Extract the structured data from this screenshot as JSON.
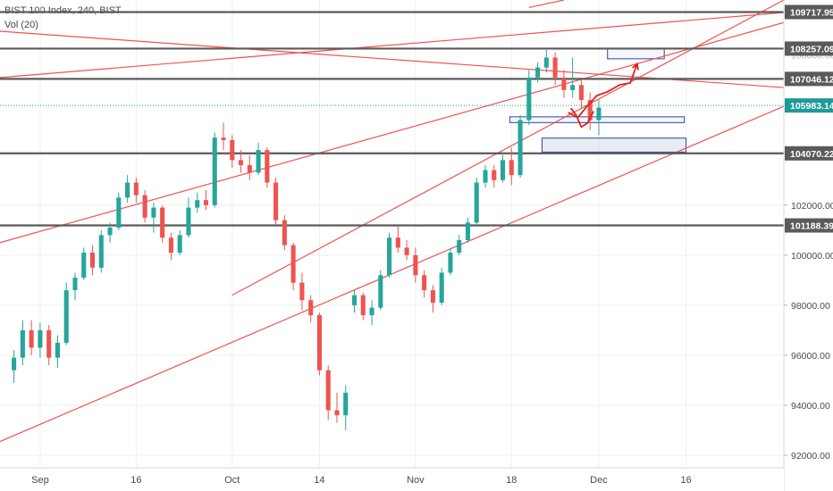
{
  "legend": {
    "symbol_line": "BIST 100 Index, 240, BIST",
    "volume_line": "Vol (20)"
  },
  "chart_data": {
    "type": "candlestick",
    "title": "BIST 100 Index, 240, BIST",
    "ylim": [
      91500,
      110200
    ],
    "y_ticks": [
      "92000.00",
      "94000.00",
      "96000.00",
      "98000.00",
      "100000.00",
      "102000.00"
    ],
    "x_ticks": [
      {
        "label": "Sep",
        "session": 3
      },
      {
        "label": "16",
        "session": 14
      },
      {
        "label": "Oct",
        "session": 25
      },
      {
        "label": "14",
        "session": 35
      },
      {
        "label": "Nov",
        "session": 46
      },
      {
        "label": "18",
        "session": 57
      },
      {
        "label": "Dec",
        "session": 67
      },
      {
        "label": "16",
        "session": 77
      }
    ],
    "x_range": [
      -1.6,
      88.2
    ],
    "price_levels": [
      {
        "label": "109717.95",
        "value": 109718,
        "color": "#5a5a5a",
        "style": "solid"
      },
      {
        "label": "108257.09",
        "value": 108257,
        "color": "#5a5a5a",
        "style": "solid"
      },
      {
        "label": "107046.12",
        "value": 107046,
        "color": "#5a5a5a",
        "style": "solid"
      },
      {
        "label": "105983.14",
        "value": 105983,
        "color": "#1e9a98",
        "style": "dotted"
      },
      {
        "label": "104070.22",
        "value": 104070,
        "color": "#5a5a5a",
        "style": "solid"
      },
      {
        "label": "101188.39",
        "value": 101188,
        "color": "#5a5a5a",
        "style": "solid"
      }
    ],
    "hidden_label": "108000.00",
    "trend_lines": [
      {
        "x1": -1.6,
        "y1": 107100,
        "x2": 88.2,
        "y2": 109700
      },
      {
        "x1": 25.0,
        "y1": 98400,
        "x2": 88.2,
        "y2": 110200
      },
      {
        "x1": -1.6,
        "y1": 100500,
        "x2": 88.2,
        "y2": 109300
      },
      {
        "x1": -1.6,
        "y1": 108950,
        "x2": 88.2,
        "y2": 106700
      },
      {
        "x1": -1.6,
        "y1": 92550,
        "x2": 88.2,
        "y2": 105950
      },
      {
        "x1": 59.0,
        "y1": 109900,
        "x2": 63.0,
        "y2": 110200
      }
    ],
    "zones": [
      {
        "x1": 68.0,
        "x2": 74.5,
        "y1": 107850,
        "y2": 108250,
        "style": "outline"
      },
      {
        "x1": 56.8,
        "x2": 76.8,
        "y1": 105300,
        "y2": 105530,
        "style": "outline"
      },
      {
        "x1": 60.5,
        "x2": 77.0,
        "y1": 104120,
        "y2": 104680,
        "style": "filled"
      }
    ],
    "projection_up": [
      [
        63.5,
        105700
      ],
      [
        64.6,
        105500
      ],
      [
        65.6,
        105930
      ],
      [
        66.8,
        106380
      ],
      [
        68.0,
        106530
      ],
      [
        69.4,
        106810
      ],
      [
        70.6,
        106880
      ],
      [
        71.4,
        107650
      ]
    ],
    "projection_down": [
      [
        63.8,
        105880
      ],
      [
        64.4,
        105600
      ],
      [
        65.0,
        105120
      ],
      [
        65.7,
        105280
      ],
      [
        66.4,
        105750
      ]
    ],
    "candles": [
      {
        "o": 95400,
        "h": 96200,
        "l": 94900,
        "c": 95900
      },
      {
        "o": 95900,
        "h": 97400,
        "l": 95600,
        "c": 97000
      },
      {
        "o": 97000,
        "h": 97400,
        "l": 96000,
        "c": 96300
      },
      {
        "o": 96300,
        "h": 97300,
        "l": 95900,
        "c": 97000
      },
      {
        "o": 97000,
        "h": 97200,
        "l": 95600,
        "c": 95900
      },
      {
        "o": 95900,
        "h": 96800,
        "l": 95500,
        "c": 96500
      },
      {
        "o": 96500,
        "h": 98900,
        "l": 96400,
        "c": 98600
      },
      {
        "o": 98600,
        "h": 99300,
        "l": 98200,
        "c": 99100
      },
      {
        "o": 99100,
        "h": 100300,
        "l": 99000,
        "c": 100100
      },
      {
        "o": 100100,
        "h": 100400,
        "l": 99200,
        "c": 99500
      },
      {
        "o": 99500,
        "h": 101000,
        "l": 99300,
        "c": 100800
      },
      {
        "o": 100800,
        "h": 101300,
        "l": 100500,
        "c": 101100
      },
      {
        "o": 101100,
        "h": 102500,
        "l": 101000,
        "c": 102300
      },
      {
        "o": 102300,
        "h": 103200,
        "l": 102100,
        "c": 102900
      },
      {
        "o": 102900,
        "h": 103100,
        "l": 102100,
        "c": 102400
      },
      {
        "o": 102400,
        "h": 102600,
        "l": 101300,
        "c": 101500
      },
      {
        "o": 101500,
        "h": 102100,
        "l": 100900,
        "c": 101900
      },
      {
        "o": 101900,
        "h": 102000,
        "l": 100500,
        "c": 100700
      },
      {
        "o": 100700,
        "h": 100900,
        "l": 99800,
        "c": 100100
      },
      {
        "o": 100100,
        "h": 101000,
        "l": 100000,
        "c": 100800
      },
      {
        "o": 100800,
        "h": 102300,
        "l": 100700,
        "c": 101900
      },
      {
        "o": 101900,
        "h": 102500,
        "l": 101700,
        "c": 102200
      },
      {
        "o": 102200,
        "h": 102600,
        "l": 101800,
        "c": 102000
      },
      {
        "o": 102000,
        "h": 104900,
        "l": 101900,
        "c": 104700
      },
      {
        "o": 104700,
        "h": 105300,
        "l": 104200,
        "c": 104600
      },
      {
        "o": 104600,
        "h": 104800,
        "l": 103500,
        "c": 103800
      },
      {
        "o": 103800,
        "h": 104200,
        "l": 103300,
        "c": 103600
      },
      {
        "o": 103600,
        "h": 104000,
        "l": 103000,
        "c": 103300
      },
      {
        "o": 103300,
        "h": 104500,
        "l": 103200,
        "c": 104200
      },
      {
        "o": 104200,
        "h": 104300,
        "l": 102700,
        "c": 102900
      },
      {
        "o": 102900,
        "h": 103100,
        "l": 101200,
        "c": 101400
      },
      {
        "o": 101400,
        "h": 101600,
        "l": 100200,
        "c": 100400
      },
      {
        "o": 100400,
        "h": 100500,
        "l": 98600,
        "c": 98900
      },
      {
        "o": 98900,
        "h": 99300,
        "l": 97800,
        "c": 98200
      },
      {
        "o": 98200,
        "h": 98400,
        "l": 97300,
        "c": 97600
      },
      {
        "o": 97600,
        "h": 97700,
        "l": 95200,
        "c": 95400
      },
      {
        "o": 95400,
        "h": 95600,
        "l": 93400,
        "c": 93800
      },
      {
        "o": 93800,
        "h": 94500,
        "l": 93300,
        "c": 93600
      },
      {
        "o": 93600,
        "h": 94800,
        "l": 93000,
        "c": 94500
      },
      {
        "o": 98000,
        "h": 98600,
        "l": 97700,
        "c": 98400
      },
      {
        "o": 98400,
        "h": 98500,
        "l": 97400,
        "c": 97600
      },
      {
        "o": 97600,
        "h": 98200,
        "l": 97200,
        "c": 97900
      },
      {
        "o": 97900,
        "h": 99400,
        "l": 97800,
        "c": 99200
      },
      {
        "o": 99200,
        "h": 100900,
        "l": 99100,
        "c": 100700
      },
      {
        "o": 100700,
        "h": 101200,
        "l": 100100,
        "c": 100300
      },
      {
        "o": 100300,
        "h": 100600,
        "l": 99800,
        "c": 100000
      },
      {
        "o": 100000,
        "h": 100300,
        "l": 98900,
        "c": 99200
      },
      {
        "o": 99200,
        "h": 99400,
        "l": 98300,
        "c": 98600
      },
      {
        "o": 98600,
        "h": 98800,
        "l": 97700,
        "c": 98100
      },
      {
        "o": 98100,
        "h": 99500,
        "l": 98000,
        "c": 99300
      },
      {
        "o": 99300,
        "h": 100300,
        "l": 99200,
        "c": 100100
      },
      {
        "o": 100100,
        "h": 100800,
        "l": 100000,
        "c": 100600
      },
      {
        "o": 100600,
        "h": 101500,
        "l": 100500,
        "c": 101300
      },
      {
        "o": 101300,
        "h": 103100,
        "l": 101200,
        "c": 102900
      },
      {
        "o": 102900,
        "h": 103600,
        "l": 102700,
        "c": 103400
      },
      {
        "o": 103400,
        "h": 103600,
        "l": 102700,
        "c": 103000
      },
      {
        "o": 103000,
        "h": 104000,
        "l": 102900,
        "c": 103800
      },
      {
        "o": 103800,
        "h": 104300,
        "l": 102800,
        "c": 103200
      },
      {
        "o": 103200,
        "h": 105600,
        "l": 103100,
        "c": 105400
      },
      {
        "o": 105400,
        "h": 107400,
        "l": 105200,
        "c": 107100
      },
      {
        "o": 107100,
        "h": 107700,
        "l": 106900,
        "c": 107500
      },
      {
        "o": 107500,
        "h": 108200,
        "l": 107300,
        "c": 107900
      },
      {
        "o": 107900,
        "h": 108100,
        "l": 106800,
        "c": 107100
      },
      {
        "o": 107100,
        "h": 107400,
        "l": 106300,
        "c": 106600
      },
      {
        "o": 106600,
        "h": 107900,
        "l": 106300,
        "c": 106800
      },
      {
        "o": 106800,
        "h": 107000,
        "l": 105900,
        "c": 106200
      },
      {
        "o": 106200,
        "h": 106500,
        "l": 105000,
        "c": 105400
      },
      {
        "o": 105400,
        "h": 106200,
        "l": 104800,
        "c": 105900
      }
    ]
  }
}
